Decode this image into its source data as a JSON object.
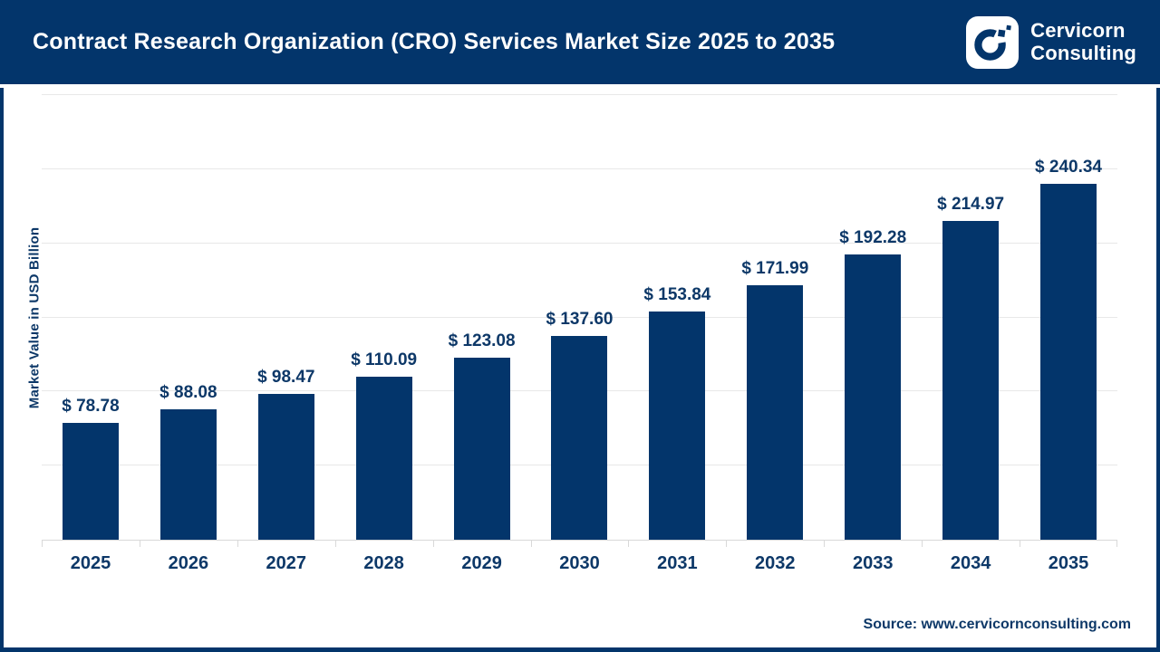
{
  "header": {
    "title": "Contract Research Organization (CRO) Services Market Size 2025 to 2035",
    "brand": {
      "line1": "Cervicorn",
      "line2": "Consulting"
    }
  },
  "chart_data": {
    "type": "bar",
    "title": "Contract Research Organization (CRO) Services Market Size 2025 to 2035",
    "categories": [
      "2025",
      "2026",
      "2027",
      "2028",
      "2029",
      "2030",
      "2031",
      "2032",
      "2033",
      "2034",
      "2035"
    ],
    "values": [
      78.78,
      88.08,
      98.47,
      110.09,
      123.08,
      137.6,
      153.84,
      171.99,
      192.28,
      214.97,
      240.34
    ],
    "labels": [
      "$ 78.78",
      "$ 88.08",
      "$ 98.47",
      "$ 110.09",
      "$ 123.08",
      "$ 137.60",
      "$ 153.84",
      "$ 171.99",
      "$ 192.28",
      "$ 214.97",
      "$ 240.34"
    ],
    "xlabel": "",
    "ylabel": "Market Value in USD Billion",
    "ylim": [
      0,
      300
    ],
    "gridline_step": 50,
    "grid": "horizontal",
    "legend": "none",
    "bar_color": "#03356B",
    "label_color": "#0d3868"
  },
  "footer": {
    "source": "Source: www.cervicornconsulting.com"
  },
  "colors": {
    "navy": "#03356B",
    "text_navy": "#0d3868",
    "gridline": "#e8e8e8",
    "axis_line": "#d9d9d9",
    "background": "#ffffff"
  },
  "icons": {
    "brand_logo": "cervicorn-c-logo-icon"
  }
}
